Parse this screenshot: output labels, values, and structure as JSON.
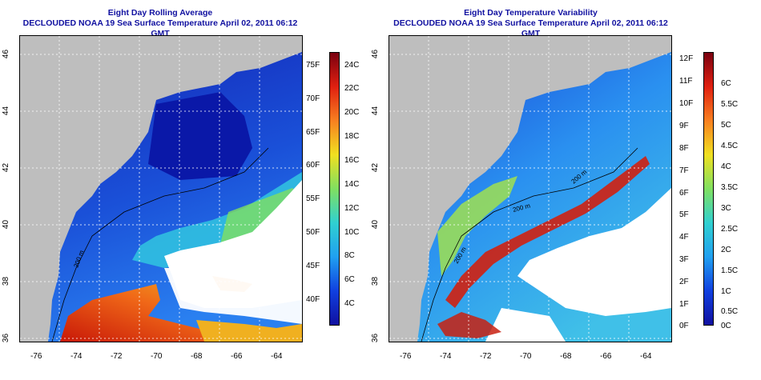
{
  "left": {
    "title_line1": "Eight Day Rolling Average",
    "title_line2": "DECLOUDED NOAA 19 Sea Surface Temperature April 02, 2011 06:12 GMT",
    "colorbar_f": [
      "75F",
      "70F",
      "65F",
      "60F",
      "55F",
      "50F",
      "45F",
      "40F"
    ],
    "colorbar_c": [
      "24C",
      "22C",
      "20C",
      "18C",
      "16C",
      "14C",
      "12C",
      "10C",
      "8C",
      "6C",
      "4C"
    ],
    "contour_label": "200 m"
  },
  "right": {
    "title_line1": "Eight Day Temperature Variability",
    "title_line2": "DECLOUDED NOAA 19 Sea Surface Temperature April 02, 2011 06:12 GMT",
    "colorbar_f": [
      "12F",
      "11F",
      "10F",
      "9F",
      "8F",
      "7F",
      "6F",
      "5F",
      "4F",
      "3F",
      "2F",
      "1F",
      "0F"
    ],
    "colorbar_c": [
      "6C",
      "5.5C",
      "5C",
      "4.5C",
      "4C",
      "3.5C",
      "3C",
      "2.5C",
      "2C",
      "1.5C",
      "1C",
      "0.5C",
      "0C"
    ],
    "contour_label_1": "200 m",
    "contour_label_2": "200 m",
    "contour_label_3": "200 m"
  },
  "axes": {
    "x_ticks": [
      "-76",
      "-74",
      "-72",
      "-70",
      "-68",
      "-66",
      "-64"
    ],
    "y_ticks": [
      "46",
      "44",
      "42",
      "40",
      "38",
      "36"
    ]
  },
  "colors": {
    "title": "#1010a0",
    "land": "#bebebe",
    "cold": "#1530c0",
    "warm": "#e03010"
  }
}
